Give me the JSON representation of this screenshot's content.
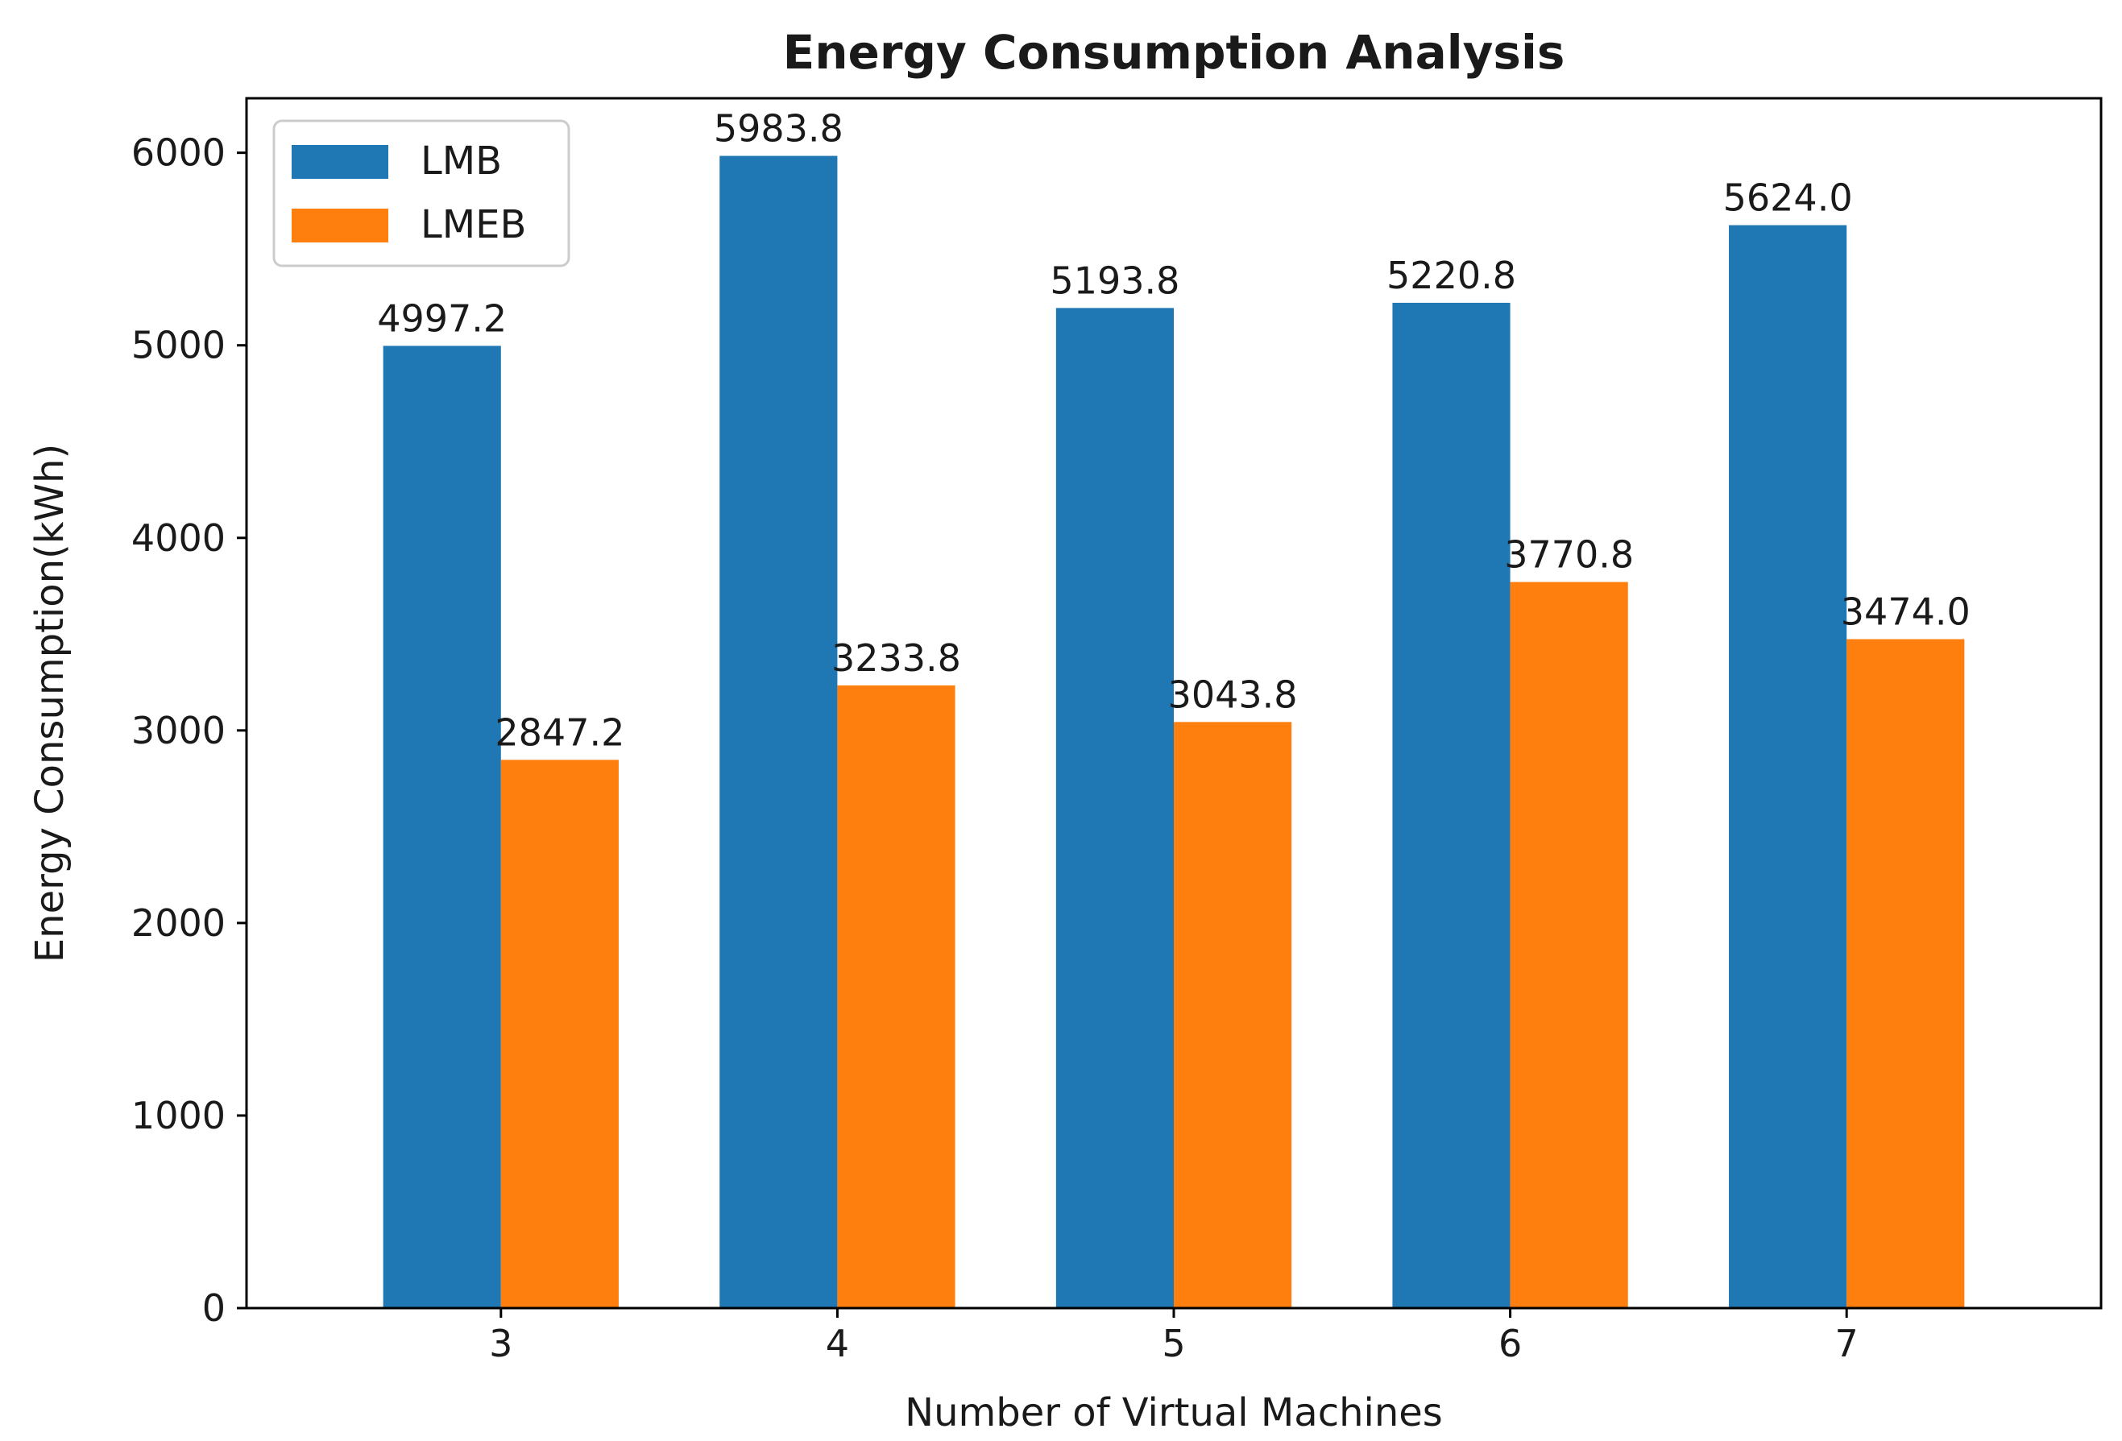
{
  "chart_data": {
    "type": "bar",
    "title": "Energy Consumption Analysis",
    "xlabel": "Number of Virtual Machines",
    "ylabel": "Energy Consumption(kWh)",
    "categories": [
      "3",
      "4",
      "5",
      "6",
      "7"
    ],
    "series": [
      {
        "name": "LMB",
        "color": "#1f77b4",
        "values": [
          4997.2,
          5983.8,
          5193.8,
          5220.8,
          5624.0
        ],
        "labels": [
          "4997.2",
          "5983.8",
          "5193.8",
          "5220.8",
          "5624.0"
        ]
      },
      {
        "name": "LMEB",
        "color": "#ff7f0e",
        "values": [
          2847.2,
          3233.8,
          3043.8,
          3770.8,
          3474.0
        ],
        "labels": [
          "2847.2",
          "3233.8",
          "3043.8",
          "3770.8",
          "3474.0"
        ]
      }
    ],
    "yticks": [
      "0",
      "1000",
      "2000",
      "3000",
      "4000",
      "5000",
      "6000"
    ],
    "ylim": [
      0,
      6283
    ],
    "grid": false,
    "legend_position": "top-left"
  }
}
